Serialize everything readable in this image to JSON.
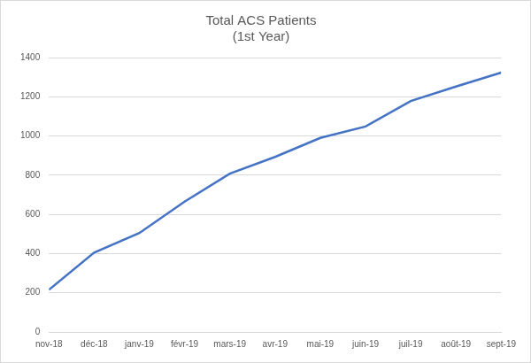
{
  "chart_data": {
    "type": "line",
    "title": [
      "Total ACS Patients",
      "(1st Year)"
    ],
    "categories": [
      "nov-18",
      "déc-18",
      "janv-19",
      "févr-19",
      "mars-19",
      "avr-19",
      "mai-19",
      "juin-19",
      "juil-19",
      "août-19",
      "sept-19"
    ],
    "values": [
      215,
      405,
      505,
      665,
      808,
      893,
      990,
      1048,
      1178,
      1252,
      1323
    ],
    "color": "#4472c4",
    "marker": "none",
    "line_style": "solid",
    "ylim": [
      0,
      1400
    ],
    "yticks": [
      0,
      200,
      400,
      600,
      800,
      1000,
      1200,
      1400
    ],
    "grid": true
  }
}
